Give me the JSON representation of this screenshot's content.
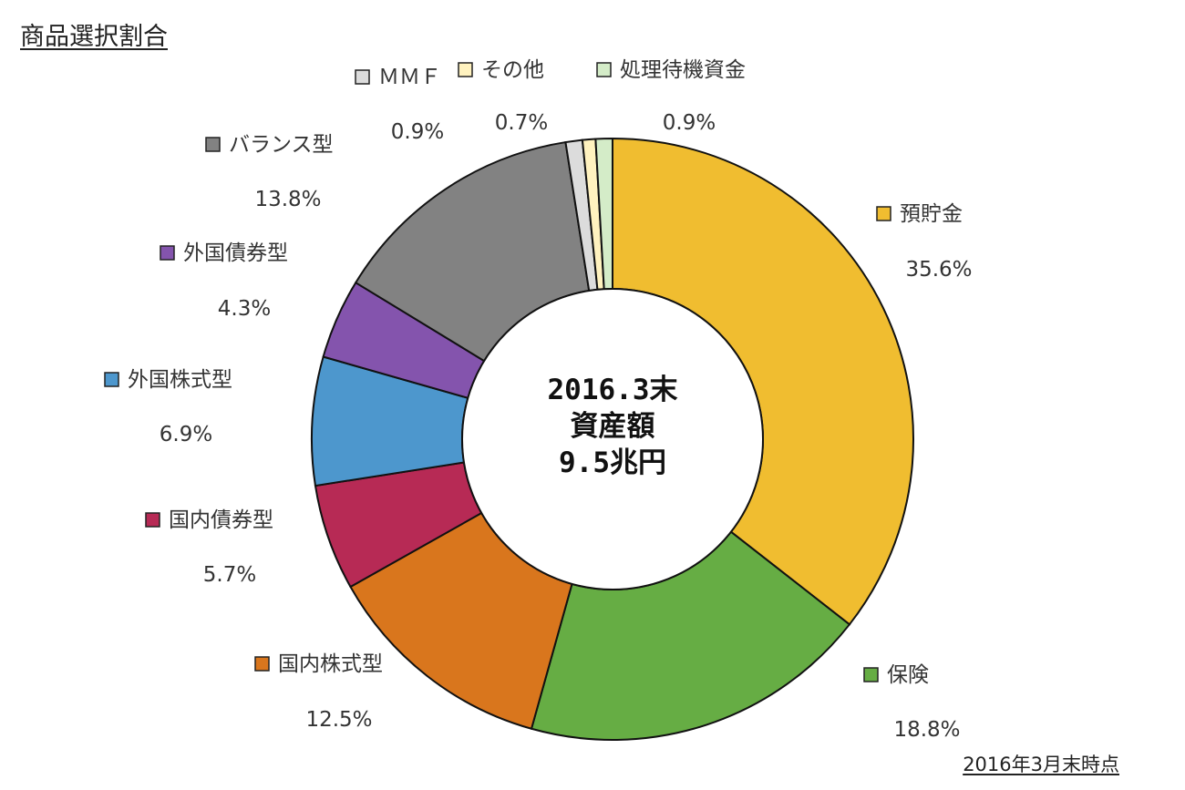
{
  "header": {
    "title": "商品選択割合"
  },
  "footer": {
    "note": "2016年3月末時点"
  },
  "chart_data": {
    "type": "pie",
    "donut": true,
    "center_label": [
      "2016.3末",
      "資産額",
      "9.5兆円"
    ],
    "slices": [
      {
        "name": "預貯金",
        "value": 35.6,
        "label": "35.6%",
        "color": "#f0bd30"
      },
      {
        "name": "保険",
        "value": 18.8,
        "label": "18.8%",
        "color": "#66ad44"
      },
      {
        "name": "国内株式型",
        "value": 12.5,
        "label": "12.5%",
        "color": "#d9761d"
      },
      {
        "name": "国内債券型",
        "value": 5.7,
        "label": "5.7%",
        "color": "#b72a55"
      },
      {
        "name": "外国株式型",
        "value": 6.9,
        "label": "6.9%",
        "color": "#4d97cd"
      },
      {
        "name": "外国債券型",
        "value": 4.3,
        "label": "4.3%",
        "color": "#8454ad"
      },
      {
        "name": "バランス型",
        "value": 13.8,
        "label": "13.8%",
        "color": "#828282"
      },
      {
        "name": "ＭＭＦ",
        "value": 0.9,
        "label": "0.9%",
        "color": "#dcdcdc"
      },
      {
        "name": "その他",
        "value": 0.7,
        "label": "0.7%",
        "color": "#fff2bf"
      },
      {
        "name": "処理待機資金",
        "value": 0.9,
        "label": "0.9%",
        "color": "#d4ecc8"
      }
    ]
  }
}
